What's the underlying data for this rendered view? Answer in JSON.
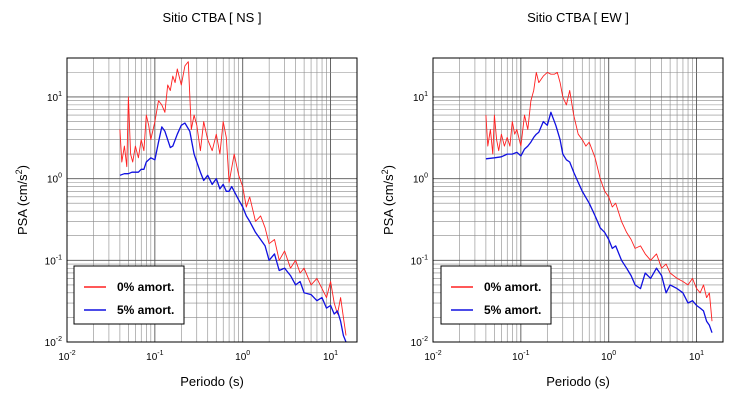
{
  "chart_data": [
    {
      "type": "line",
      "title": "Sitio CTBA [ NS ]",
      "xlabel": "Periodo (s)",
      "ylabel": "PSA (cm/s²)",
      "ylabel_main": "PSA (cm/s",
      "ylabel_sup": "2",
      "ylabel_close": ")",
      "x_scale": "log",
      "y_scale": "log",
      "xlim": [
        0.01,
        20
      ],
      "ylim": [
        0.01,
        30
      ],
      "x_ticks": [
        {
          "base": "10",
          "exp": "-2"
        },
        {
          "base": "10",
          "exp": "-1"
        },
        {
          "base": "10",
          "exp": "0"
        },
        {
          "base": "10",
          "exp": "1"
        }
      ],
      "y_ticks": [
        {
          "base": "10",
          "exp": "-2"
        },
        {
          "base": "10",
          "exp": "-1"
        },
        {
          "base": "10",
          "exp": "0"
        },
        {
          "base": "10",
          "exp": "1"
        }
      ],
      "grid": true,
      "legend_position": "bottom-left",
      "series": [
        {
          "name": "0% amort.",
          "color": "#ff2020",
          "x": [
            0.04,
            0.042,
            0.045,
            0.048,
            0.05,
            0.053,
            0.056,
            0.06,
            0.065,
            0.07,
            0.075,
            0.08,
            0.085,
            0.09,
            0.1,
            0.11,
            0.12,
            0.13,
            0.14,
            0.15,
            0.16,
            0.17,
            0.18,
            0.2,
            0.22,
            0.24,
            0.26,
            0.28,
            0.3,
            0.33,
            0.36,
            0.4,
            0.45,
            0.5,
            0.55,
            0.6,
            0.65,
            0.7,
            0.8,
            0.9,
            1.0,
            1.1,
            1.2,
            1.4,
            1.6,
            1.8,
            2.0,
            2.3,
            2.6,
            3.0,
            3.5,
            4.0,
            4.5,
            5.0,
            6.0,
            7.0,
            8.0,
            9.0,
            10.0,
            11.0,
            12.0,
            13.0,
            14.0,
            15.0
          ],
          "values": [
            4.0,
            1.6,
            2.5,
            1.4,
            10.0,
            2.0,
            1.6,
            2.5,
            1.8,
            3.0,
            2.2,
            6.0,
            4.5,
            3.0,
            5.0,
            9.0,
            8.0,
            6.5,
            14.0,
            12.0,
            18.0,
            15.0,
            22.0,
            14.0,
            24.0,
            27.0,
            4.0,
            6.0,
            4.5,
            2.2,
            5.0,
            3.0,
            2.2,
            3.5,
            2.0,
            5.0,
            3.2,
            0.9,
            2.0,
            1.1,
            0.8,
            0.45,
            0.6,
            0.3,
            0.35,
            0.25,
            0.16,
            0.18,
            0.1,
            0.13,
            0.08,
            0.1,
            0.07,
            0.08,
            0.05,
            0.06,
            0.045,
            0.035,
            0.055,
            0.03,
            0.022,
            0.035,
            0.02,
            0.012
          ]
        },
        {
          "name": "5% amort.",
          "color": "#1010e0",
          "x": [
            0.04,
            0.045,
            0.05,
            0.055,
            0.06,
            0.065,
            0.07,
            0.075,
            0.08,
            0.09,
            0.1,
            0.11,
            0.12,
            0.13,
            0.14,
            0.15,
            0.16,
            0.18,
            0.2,
            0.22,
            0.25,
            0.28,
            0.3,
            0.33,
            0.36,
            0.4,
            0.45,
            0.5,
            0.55,
            0.6,
            0.65,
            0.7,
            0.75,
            0.8,
            0.9,
            1.0,
            1.1,
            1.2,
            1.4,
            1.6,
            1.8,
            2.0,
            2.3,
            2.6,
            3.0,
            3.5,
            4.0,
            4.5,
            5.0,
            6.0,
            7.0,
            8.0,
            9.0,
            10.0,
            11.0,
            12.0,
            13.0,
            14.0,
            15.0
          ],
          "values": [
            1.1,
            1.15,
            1.15,
            1.2,
            1.2,
            1.2,
            1.3,
            1.3,
            1.6,
            1.8,
            1.7,
            2.8,
            4.3,
            3.8,
            3.0,
            2.4,
            2.5,
            3.5,
            4.5,
            4.8,
            3.8,
            2.0,
            1.6,
            1.2,
            0.95,
            1.1,
            0.85,
            1.0,
            0.75,
            0.85,
            0.7,
            0.7,
            0.8,
            0.7,
            0.55,
            0.45,
            0.35,
            0.3,
            0.22,
            0.18,
            0.15,
            0.1,
            0.12,
            0.075,
            0.08,
            0.065,
            0.05,
            0.055,
            0.04,
            0.038,
            0.032,
            0.035,
            0.026,
            0.028,
            0.022,
            0.024,
            0.018,
            0.012,
            0.01
          ]
        }
      ]
    },
    {
      "type": "line",
      "title": "Sitio CTBA [ EW ]",
      "xlabel": "Periodo (s)",
      "ylabel": "PSA (cm/s²)",
      "ylabel_main": "PSA (cm/s",
      "ylabel_sup": "2",
      "ylabel_close": ")",
      "x_scale": "log",
      "y_scale": "log",
      "xlim": [
        0.01,
        20
      ],
      "ylim": [
        0.01,
        30
      ],
      "x_ticks": [
        {
          "base": "10",
          "exp": "-2"
        },
        {
          "base": "10",
          "exp": "-1"
        },
        {
          "base": "10",
          "exp": "0"
        },
        {
          "base": "10",
          "exp": "1"
        }
      ],
      "y_ticks": [
        {
          "base": "10",
          "exp": "-2"
        },
        {
          "base": "10",
          "exp": "-1"
        },
        {
          "base": "10",
          "exp": "0"
        },
        {
          "base": "10",
          "exp": "1"
        }
      ],
      "grid": true,
      "legend_position": "bottom-left",
      "series": [
        {
          "name": "0% amort.",
          "color": "#ff2020",
          "x": [
            0.04,
            0.042,
            0.045,
            0.048,
            0.05,
            0.053,
            0.056,
            0.06,
            0.065,
            0.07,
            0.075,
            0.08,
            0.085,
            0.09,
            0.1,
            0.11,
            0.12,
            0.13,
            0.14,
            0.15,
            0.16,
            0.18,
            0.2,
            0.22,
            0.24,
            0.26,
            0.28,
            0.3,
            0.33,
            0.36,
            0.4,
            0.45,
            0.5,
            0.55,
            0.6,
            0.7,
            0.8,
            0.9,
            1.0,
            1.1,
            1.2,
            1.4,
            1.6,
            1.8,
            2.0,
            2.3,
            2.6,
            3.0,
            3.5,
            4.0,
            4.5,
            5.0,
            6.0,
            7.0,
            8.0,
            9.0,
            10.0,
            11.0,
            12.0,
            13.0,
            14.0,
            15.0
          ],
          "values": [
            6.0,
            2.5,
            4.0,
            2.0,
            6.0,
            3.0,
            2.2,
            3.5,
            2.5,
            3.2,
            2.5,
            5.0,
            3.5,
            4.0,
            2.5,
            6.0,
            4.0,
            9.0,
            12.0,
            20.0,
            15.0,
            18.0,
            20.0,
            19.0,
            19.0,
            20.0,
            15.0,
            10.0,
            8.0,
            12.0,
            6.0,
            3.5,
            3.0,
            2.5,
            2.8,
            1.8,
            1.0,
            0.7,
            0.6,
            0.45,
            0.5,
            0.3,
            0.22,
            0.18,
            0.14,
            0.15,
            0.12,
            0.1,
            0.12,
            0.08,
            0.09,
            0.07,
            0.06,
            0.055,
            0.05,
            0.06,
            0.045,
            0.04,
            0.05,
            0.035,
            0.04,
            0.018
          ]
        },
        {
          "name": "5% amort.",
          "color": "#1010e0",
          "x": [
            0.04,
            0.05,
            0.06,
            0.07,
            0.08,
            0.09,
            0.1,
            0.11,
            0.12,
            0.13,
            0.14,
            0.15,
            0.16,
            0.18,
            0.2,
            0.22,
            0.25,
            0.28,
            0.3,
            0.33,
            0.36,
            0.4,
            0.45,
            0.5,
            0.6,
            0.7,
            0.8,
            0.9,
            1.0,
            1.1,
            1.2,
            1.4,
            1.6,
            1.8,
            2.0,
            2.3,
            2.6,
            3.0,
            3.5,
            4.0,
            4.5,
            5.0,
            6.0,
            7.0,
            8.0,
            9.0,
            10.0,
            11.0,
            12.0,
            13.0,
            14.0,
            15.0
          ],
          "values": [
            1.75,
            1.8,
            1.85,
            2.0,
            2.0,
            2.1,
            1.9,
            2.3,
            2.5,
            2.8,
            3.2,
            3.5,
            3.7,
            5.0,
            4.5,
            6.5,
            4.5,
            3.0,
            2.0,
            1.7,
            1.6,
            1.2,
            0.9,
            0.7,
            0.5,
            0.35,
            0.25,
            0.22,
            0.18,
            0.14,
            0.15,
            0.1,
            0.08,
            0.065,
            0.05,
            0.045,
            0.07,
            0.06,
            0.08,
            0.065,
            0.04,
            0.05,
            0.045,
            0.04,
            0.03,
            0.032,
            0.028,
            0.026,
            0.024,
            0.018,
            0.016,
            0.013
          ]
        }
      ]
    }
  ]
}
